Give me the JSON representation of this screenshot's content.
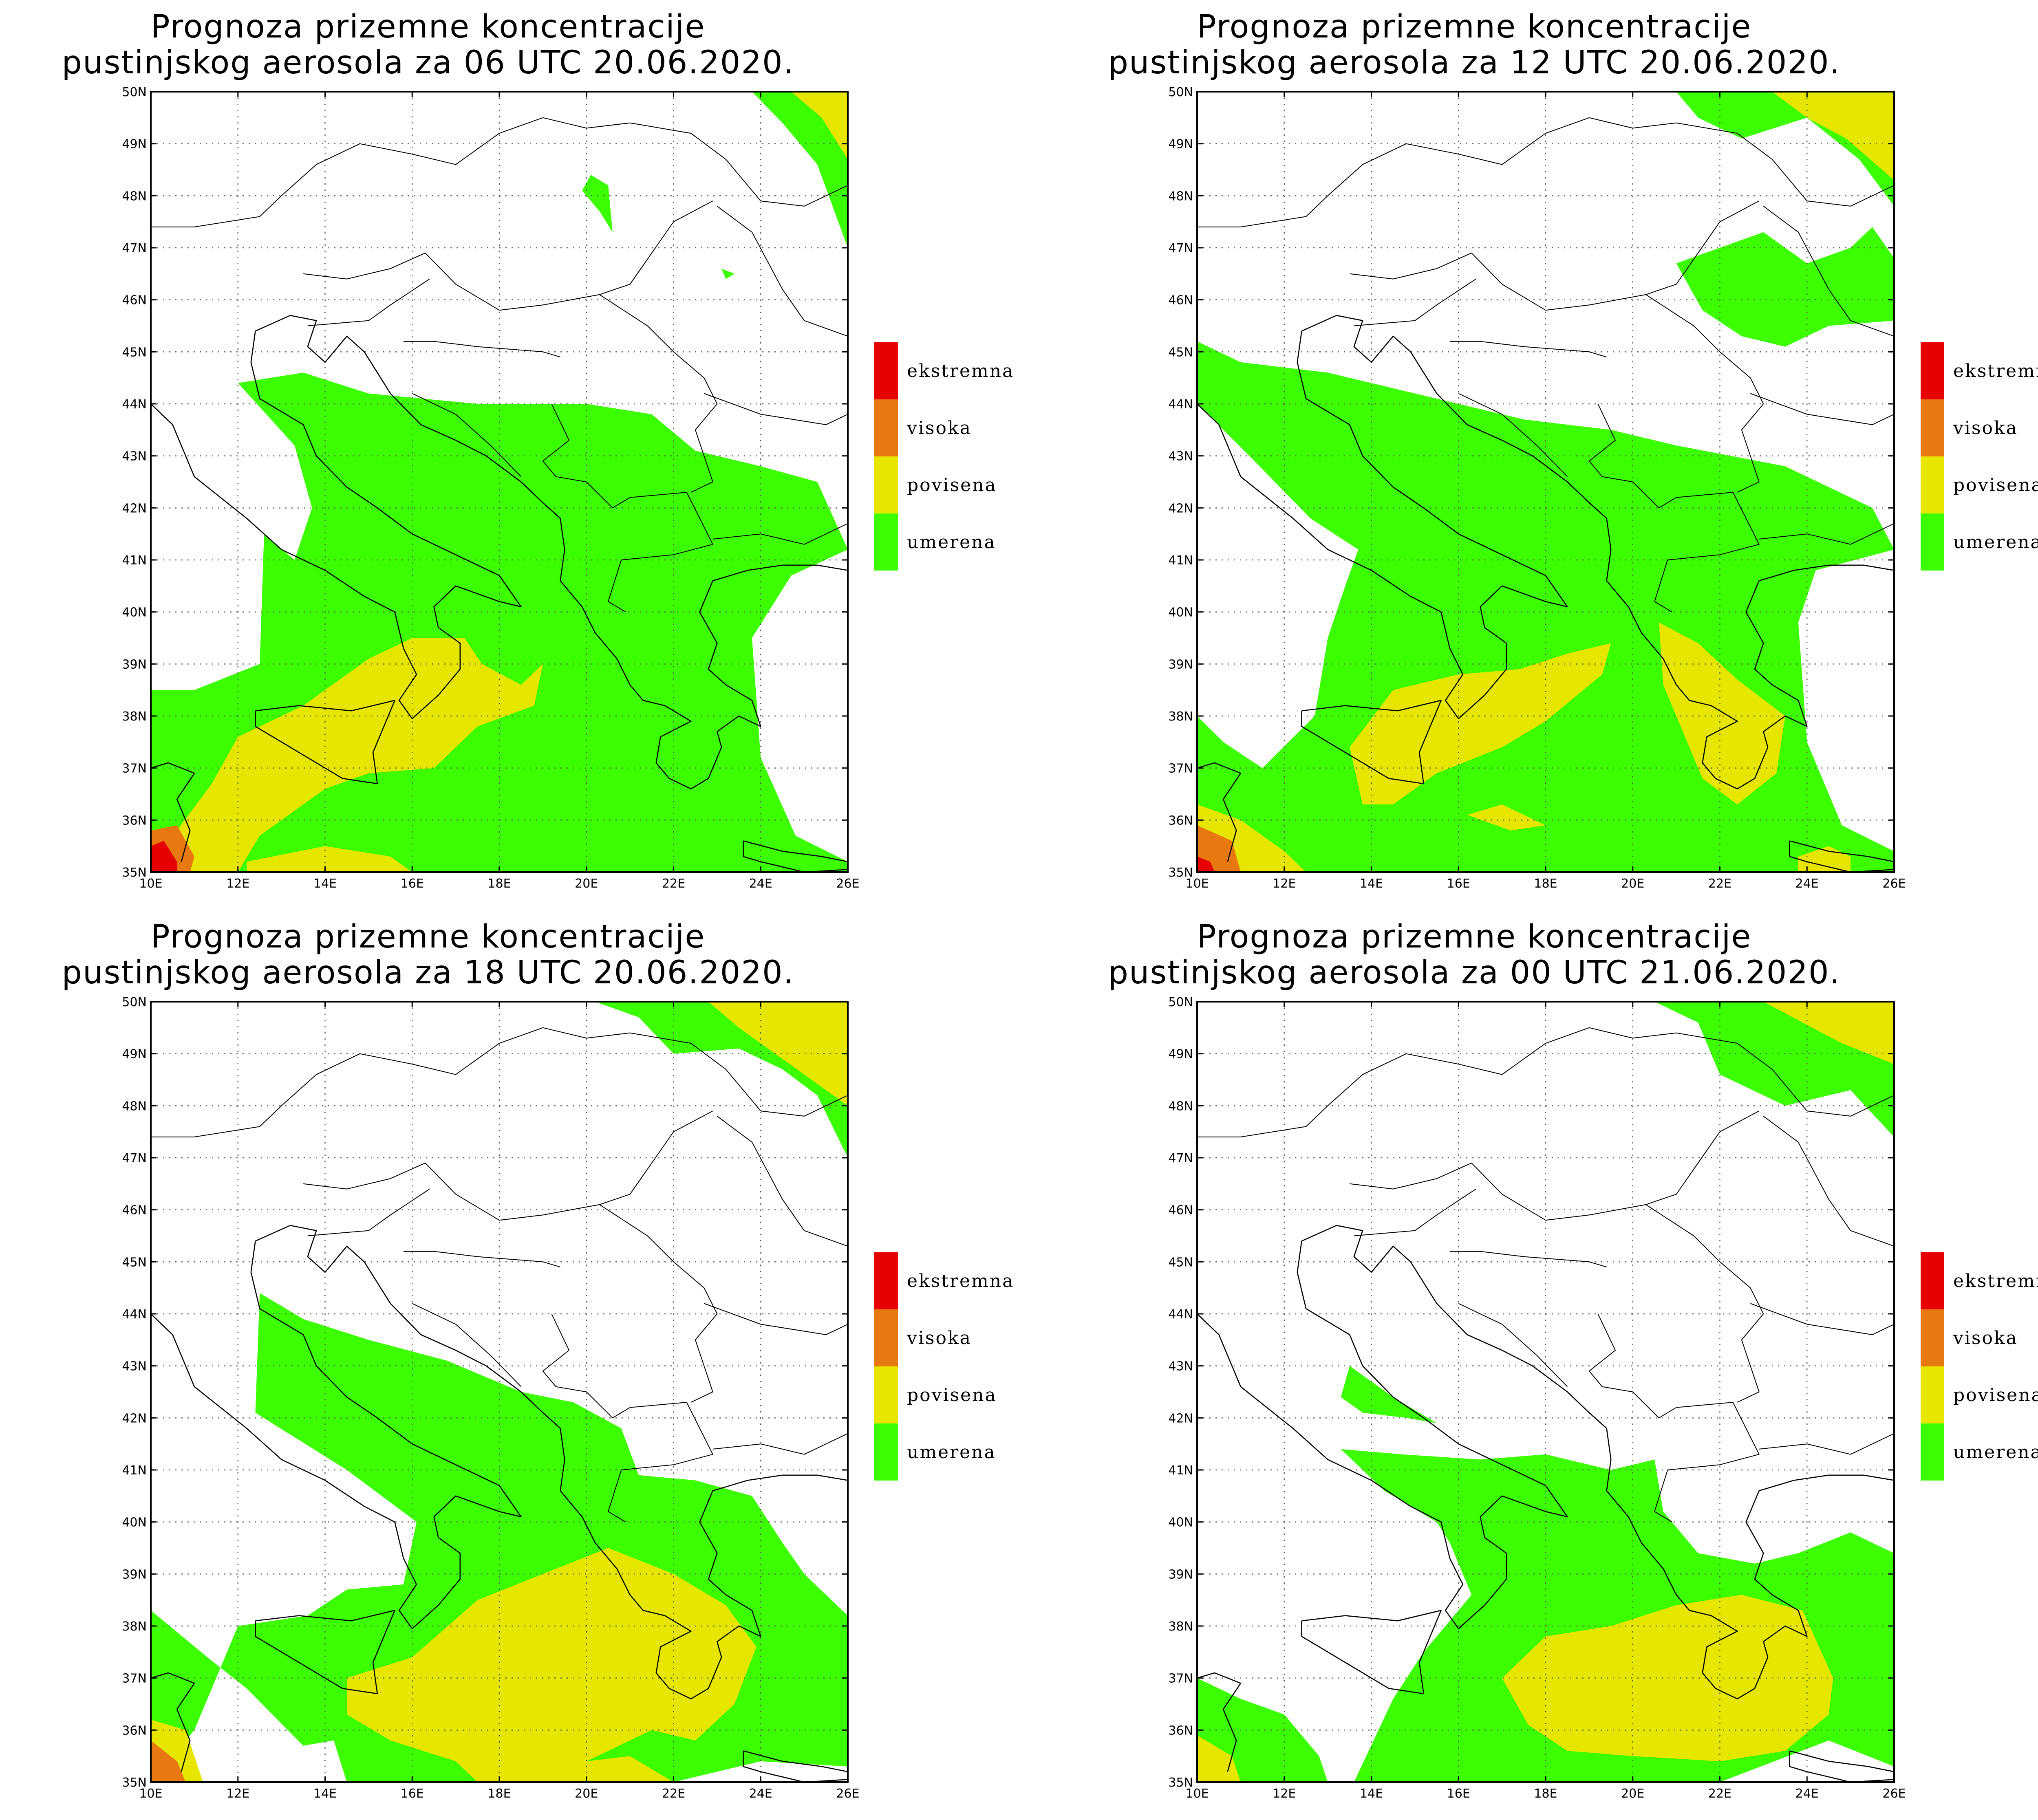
{
  "colors": {
    "umerena": "#3cff00",
    "povisena": "#e6e600",
    "visoka": "#e87810",
    "ekstremna": "#e60000"
  },
  "legend": [
    {
      "label": "ekstremna",
      "color": "#e60000"
    },
    {
      "label": "visoka",
      "color": "#e87810"
    },
    {
      "label": "povisena",
      "color": "#e6e600"
    },
    {
      "label": "umerena",
      "color": "#3cff00"
    }
  ],
  "lat_labels": [
    "50N",
    "49N",
    "48N",
    "47N",
    "46N",
    "45N",
    "44N",
    "43N",
    "42N",
    "41N",
    "40N",
    "39N",
    "38N",
    "37N",
    "36N",
    "35N"
  ],
  "lon_labels": [
    "10E",
    "12E",
    "14E",
    "16E",
    "18E",
    "20E",
    "22E",
    "24E",
    "26E"
  ],
  "panels": [
    {
      "title_line1": "Prognoza prizemne koncentracije",
      "title_line2": "pustinjskog aerosola za 06 UTC 20.06.2020."
    },
    {
      "title_line1": "Prognoza prizemne koncentracije",
      "title_line2": "pustinjskog aerosola za 12 UTC 20.06.2020."
    },
    {
      "title_line1": "Prognoza prizemne koncentracije",
      "title_line2": "pustinjskog aerosola za 18 UTC 20.06.2020."
    },
    {
      "title_line1": "Prognoza prizemne koncentracije",
      "title_line2": "pustinjskog aerosola za 00 UTC 21.06.2020."
    }
  ]
}
